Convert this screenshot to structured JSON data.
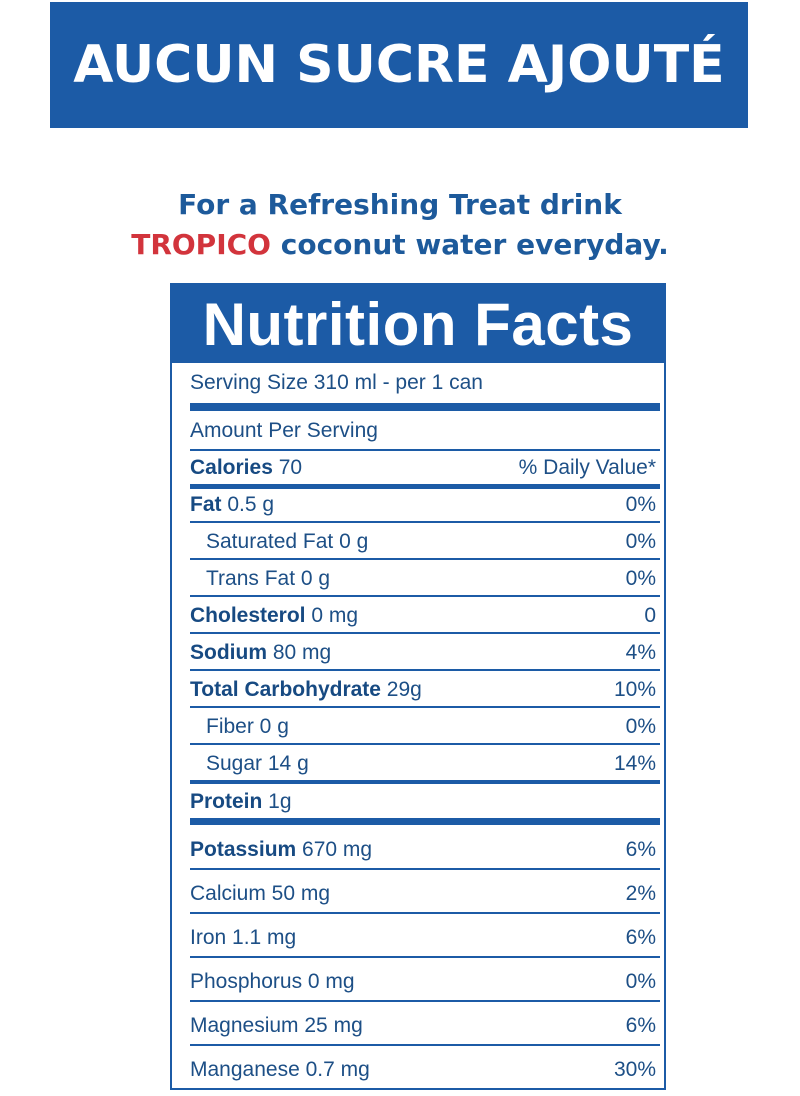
{
  "banner": {
    "text": "AUCUN SUCRE AJOUTÉ",
    "color": "#1c5ba6"
  },
  "tagline": {
    "line1": "For a Refreshing Treat drink",
    "brand": "TROPICO",
    "line2_rest": " coconut water everyday.",
    "brand_color": "#d2343c",
    "text_color": "#1d5a9b"
  },
  "panel": {
    "title": "Nutrition Facts",
    "serving": "Serving Size 310 ml - per 1 can",
    "amount_per_serving": "Amount Per Serving",
    "calories_label": "Calories",
    "calories_value": " 70",
    "daily_value_label": "% Daily Value*",
    "rows": [
      {
        "name": "Fat",
        "amount": " 0.5 g",
        "dv": "0%"
      },
      {
        "name": "Saturated Fat 0 g",
        "amount": "",
        "dv": "0%"
      },
      {
        "name": "Trans Fat 0 g",
        "amount": "",
        "dv": "0%"
      },
      {
        "name": "Cholesterol",
        "amount": " 0 mg",
        "dv": "0"
      },
      {
        "name": "Sodium",
        "amount": " 80 mg",
        "dv": "4%"
      },
      {
        "name": "Total Carbohydrate",
        "amount": " 29g",
        "dv": "10%"
      },
      {
        "name": "Fiber 0 g",
        "amount": "",
        "dv": "0%"
      },
      {
        "name": "Sugar 14 g",
        "amount": "",
        "dv": "14%"
      },
      {
        "name": "Protein",
        "amount": " 1g",
        "dv": ""
      },
      {
        "name": "Potassium",
        "amount": " 670 mg",
        "dv": "6%"
      },
      {
        "name": "Calcium 50 mg",
        "amount": "",
        "dv": "2%"
      },
      {
        "name": "Iron 1.1  mg",
        "amount": "",
        "dv": "6%"
      },
      {
        "name": "Phosphorus 0 mg",
        "amount": "",
        "dv": "0%"
      },
      {
        "name": "Magnesium 25 mg",
        "amount": "",
        "dv": "6%"
      },
      {
        "name": "Manganese 0.7 mg",
        "amount": "",
        "dv": "30%"
      }
    ]
  }
}
